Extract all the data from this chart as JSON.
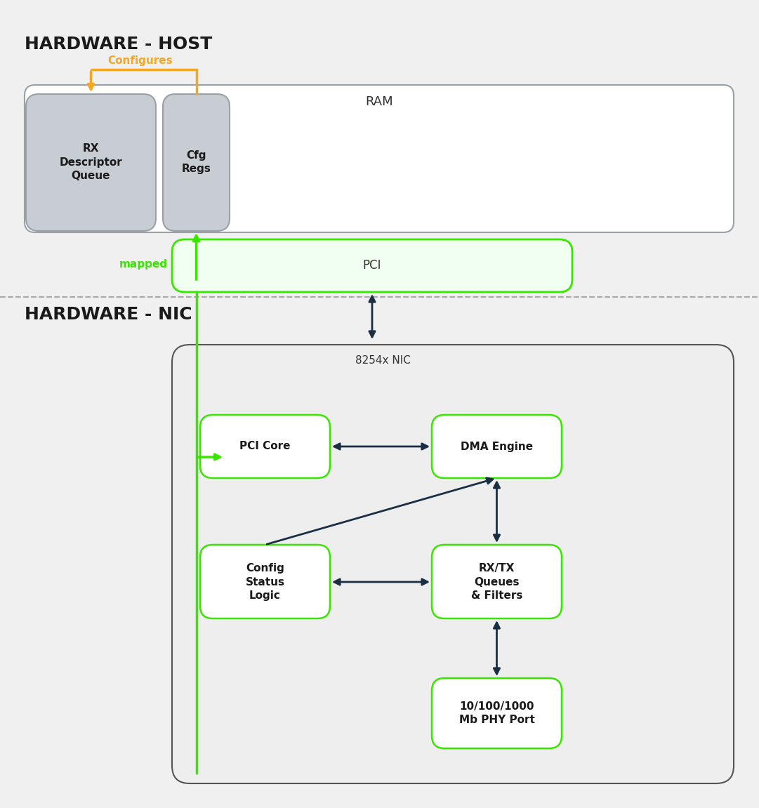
{
  "bg_color": "#f0f0f0",
  "title_host": "HARDWARE - HOST",
  "title_nic": "HARDWARE - NIC",
  "orange_color": "#f5a623",
  "green_color": "#39e600",
  "dark_color": "#1a2e44",
  "box_fill_gray": "#c8cdd4",
  "box_fill_white": "#ffffff",
  "box_stroke_gray": "#9aa0a8",
  "box_stroke_green": "#6abf00",
  "ram_label": "RAM",
  "rx_desc_label": "RX\nDescriptor\nQueue",
  "cfg_regs_label": "Cfg\nRegs",
  "configures_label": "Configures",
  "mapped_label": "mapped",
  "pci_label": "PCI",
  "nic_container_label": "8254x NIC",
  "pci_core_label": "PCI Core",
  "dma_engine_label": "DMA Engine",
  "config_status_label": "Config\nStatus\nLogic",
  "rxtx_label": "RX/TX\nQueues\n& Filters",
  "phy_label": "10/100/1000\nMb PHY Port"
}
